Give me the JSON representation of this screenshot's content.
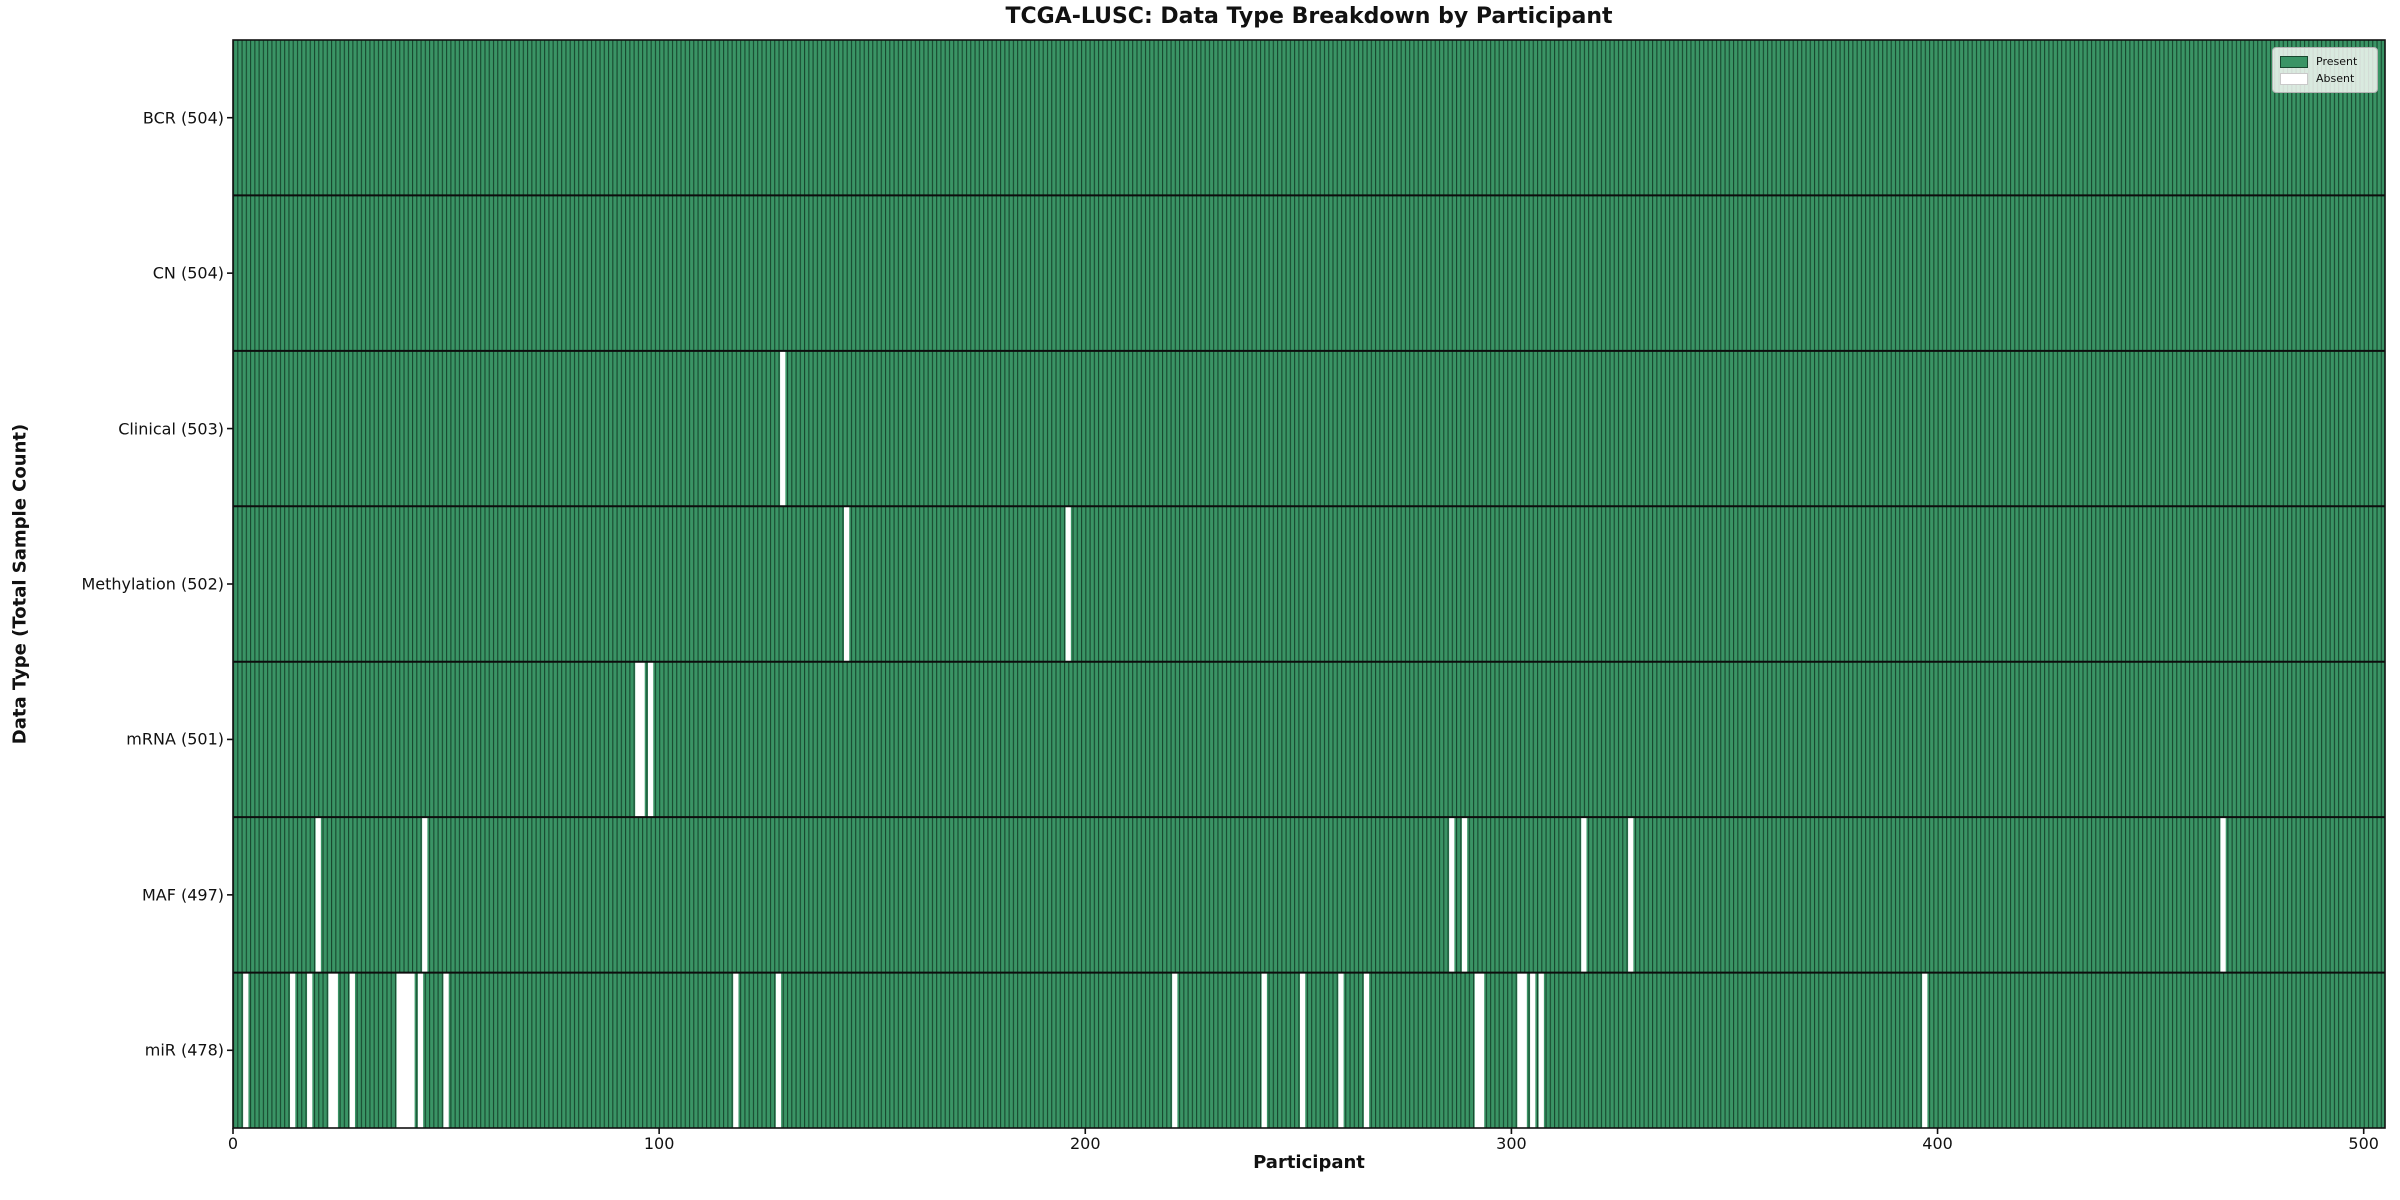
{
  "chart_data": {
    "type": "heatmap",
    "title": "TCGA-LUSC: Data Type Breakdown by Participant",
    "xlabel": "Participant",
    "ylabel": "Data Type (Total Sample Count)",
    "x_ticks": [
      0,
      100,
      200,
      300,
      400,
      500
    ],
    "xlim": [
      0,
      505
    ],
    "n_participants": 504,
    "legend": [
      {
        "label": "Present",
        "color": "#3a9465"
      },
      {
        "label": "Absent",
        "color": "#ffffff"
      }
    ],
    "colors": {
      "present_fill": "#3a9465",
      "bar_edge": "#17472e",
      "absent_fill": "#ffffff",
      "row_separator": "#0d0d0d",
      "spine": "#111111"
    },
    "rows": [
      {
        "label": "BCR (504)",
        "total": 504,
        "absent": []
      },
      {
        "label": "CN (504)",
        "total": 504,
        "absent": []
      },
      {
        "label": "Clinical (503)",
        "total": 503,
        "absent": [
          129
        ]
      },
      {
        "label": "Methylation (502)",
        "total": 502,
        "absent": [
          144,
          196
        ]
      },
      {
        "label": "mRNA (501)",
        "total": 501,
        "absent": [
          95,
          96,
          98
        ]
      },
      {
        "label": "MAF (497)",
        "total": 497,
        "absent": [
          20,
          45,
          286,
          289,
          317,
          328,
          467
        ]
      },
      {
        "label": "miR (478)",
        "total": 478,
        "absent": [
          3,
          14,
          18,
          23,
          24,
          28,
          39,
          40,
          41,
          42,
          44,
          50,
          118,
          128,
          221,
          242,
          251,
          260,
          266,
          292,
          293,
          302,
          303,
          305,
          307,
          397
        ]
      }
    ]
  }
}
